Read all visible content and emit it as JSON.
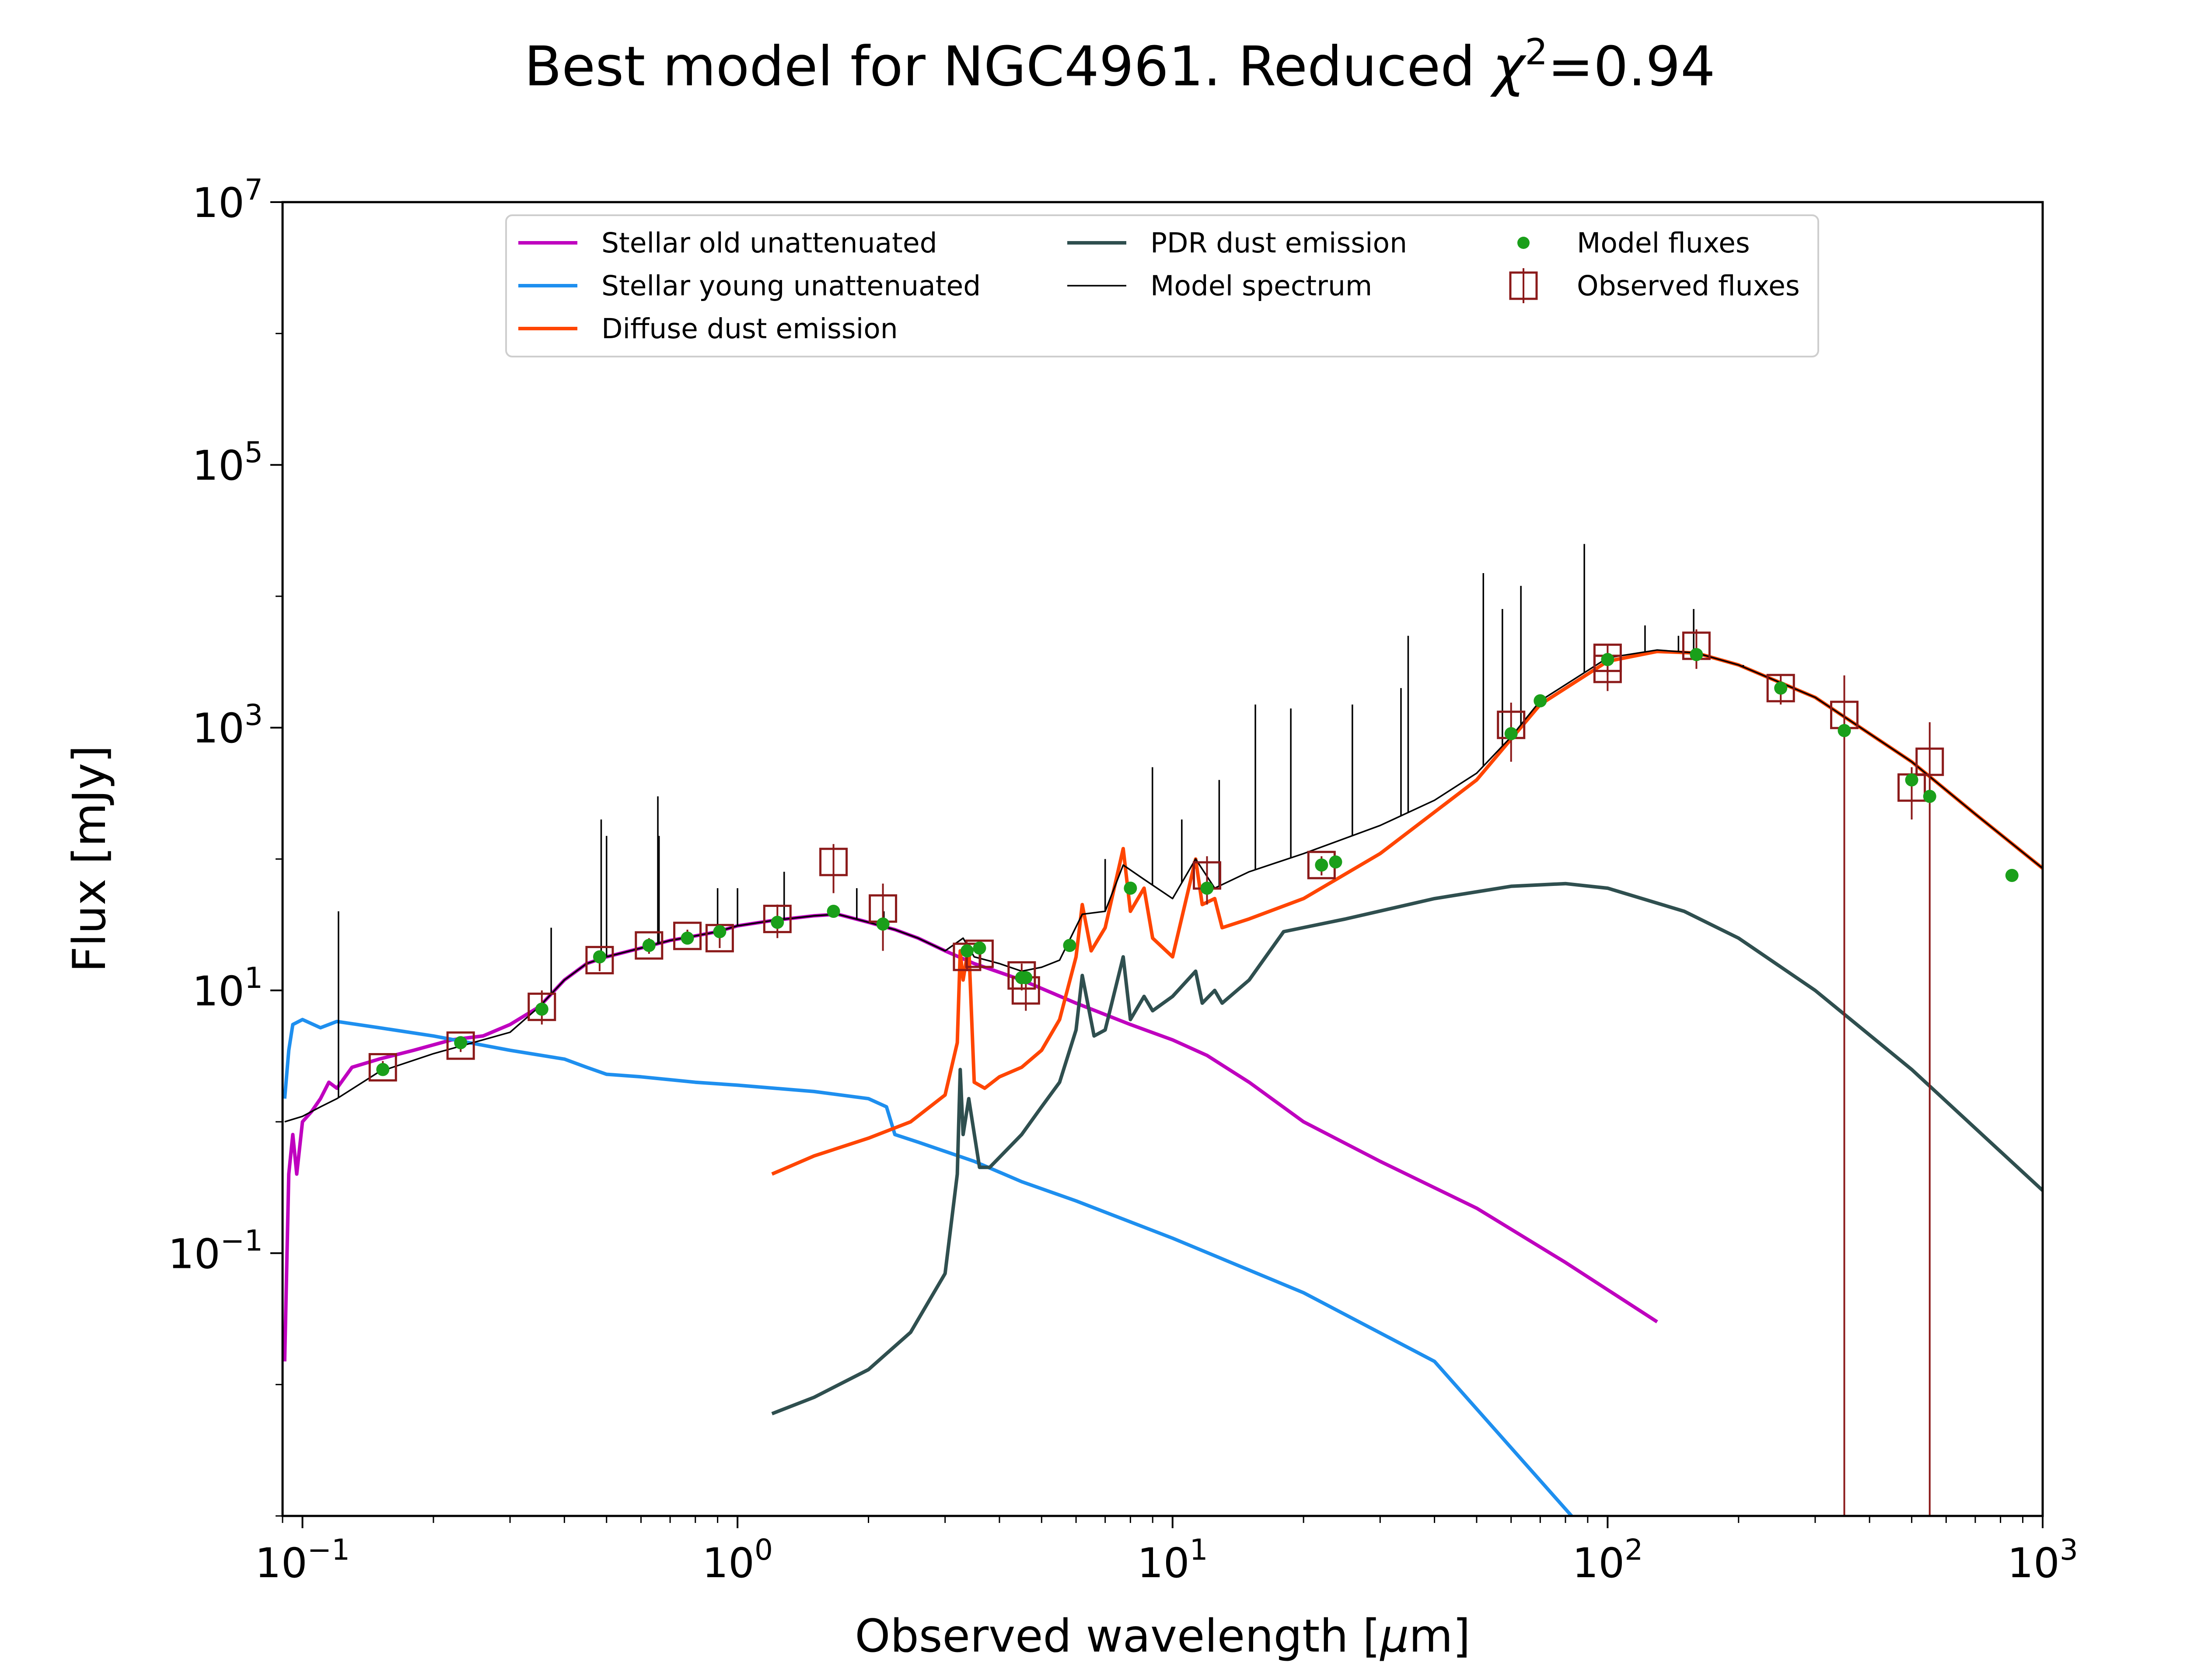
{
  "chart_data": {
    "type": "line",
    "title_main": "Best model for NGC4961. Reduced ",
    "title_chi": "χ",
    "title_chi_exp": "2",
    "title_value": "=0.94",
    "xlabel_pre": "Observed wavelength [",
    "xlabel_mu": "μ",
    "xlabel_post": "m]",
    "ylabel": "Flux [mJy]",
    "xscale": "log",
    "yscale": "log",
    "xlim": [
      0.09,
      1000
    ],
    "ylim": [
      0.001,
      10000000
    ],
    "grid": false,
    "legend_position": "top-center",
    "x_ticks": [
      {
        "value": 0.1,
        "base": "10",
        "exp": "−1"
      },
      {
        "value": 1,
        "base": "10",
        "exp": "0"
      },
      {
        "value": 10,
        "base": "10",
        "exp": "1"
      },
      {
        "value": 100,
        "base": "10",
        "exp": "2"
      },
      {
        "value": 1000,
        "base": "10",
        "exp": "3"
      }
    ],
    "y_ticks": [
      {
        "value": 0.1,
        "base": "10",
        "exp": "−1"
      },
      {
        "value": 10,
        "base": "10",
        "exp": "1"
      },
      {
        "value": 1000,
        "base": "10",
        "exp": "3"
      },
      {
        "value": 100000,
        "base": "10",
        "exp": "5"
      },
      {
        "value": 10000000,
        "base": "10",
        "exp": "7"
      }
    ],
    "series": [
      {
        "name": "Stellar old unattenuated",
        "color": "#bf00bf",
        "points": [
          [
            0.091,
            0.015
          ],
          [
            0.093,
            0.4
          ],
          [
            0.095,
            0.8
          ],
          [
            0.097,
            0.4
          ],
          [
            0.1,
            1.0
          ],
          [
            0.105,
            1.2
          ],
          [
            0.11,
            1.5
          ],
          [
            0.115,
            2.0
          ],
          [
            0.12,
            1.8
          ],
          [
            0.13,
            2.6
          ],
          [
            0.15,
            3.0
          ],
          [
            0.18,
            3.5
          ],
          [
            0.22,
            4.2
          ],
          [
            0.26,
            4.5
          ],
          [
            0.3,
            5.5
          ],
          [
            0.35,
            7.5
          ],
          [
            0.4,
            12
          ],
          [
            0.45,
            16
          ],
          [
            0.5,
            18
          ],
          [
            0.6,
            21
          ],
          [
            0.7,
            24
          ],
          [
            0.8,
            26
          ],
          [
            0.9,
            28
          ],
          [
            1.0,
            31
          ],
          [
            1.2,
            34
          ],
          [
            1.5,
            37
          ],
          [
            1.7,
            38
          ],
          [
            2.0,
            33
          ],
          [
            2.3,
            29
          ],
          [
            2.6,
            25
          ],
          [
            3.0,
            20
          ],
          [
            3.5,
            16
          ],
          [
            4.5,
            12
          ],
          [
            6,
            8
          ],
          [
            8,
            5.5
          ],
          [
            10,
            4.2
          ],
          [
            12,
            3.2
          ],
          [
            15,
            2.0
          ],
          [
            20,
            1.0
          ],
          [
            30,
            0.5
          ],
          [
            50,
            0.22
          ],
          [
            80,
            0.085
          ],
          [
            130,
            0.03
          ]
        ]
      },
      {
        "name": "Stellar young unattenuated",
        "color": "#1e8fef",
        "points": [
          [
            0.091,
            1.5
          ],
          [
            0.093,
            3.5
          ],
          [
            0.095,
            5.5
          ],
          [
            0.1,
            6.0
          ],
          [
            0.11,
            5.2
          ],
          [
            0.12,
            5.8
          ],
          [
            0.15,
            5.2
          ],
          [
            0.2,
            4.5
          ],
          [
            0.3,
            3.5
          ],
          [
            0.4,
            3.0
          ],
          [
            0.45,
            2.6
          ],
          [
            0.5,
            2.3
          ],
          [
            0.6,
            2.2
          ],
          [
            0.8,
            2.0
          ],
          [
            1.0,
            1.9
          ],
          [
            1.5,
            1.7
          ],
          [
            2.0,
            1.5
          ],
          [
            2.2,
            1.3
          ],
          [
            2.3,
            0.8
          ],
          [
            2.6,
            0.7
          ],
          [
            3.5,
            0.5
          ],
          [
            4.5,
            0.35
          ],
          [
            6,
            0.25
          ],
          [
            10,
            0.13
          ],
          [
            20,
            0.05
          ],
          [
            40,
            0.015
          ],
          [
            85,
            0.0009
          ]
        ]
      },
      {
        "name": "Diffuse dust emission",
        "color": "#ff4500",
        "points": [
          [
            1.2,
            0.4
          ],
          [
            1.5,
            0.55
          ],
          [
            2.0,
            0.75
          ],
          [
            2.5,
            1.0
          ],
          [
            3.0,
            1.6
          ],
          [
            3.2,
            4
          ],
          [
            3.25,
            20
          ],
          [
            3.3,
            12
          ],
          [
            3.4,
            22
          ],
          [
            3.5,
            2
          ],
          [
            3.7,
            1.8
          ],
          [
            4,
            2.2
          ],
          [
            4.5,
            2.6
          ],
          [
            5,
            3.5
          ],
          [
            5.5,
            6
          ],
          [
            6.0,
            18
          ],
          [
            6.2,
            45
          ],
          [
            6.5,
            20
          ],
          [
            7,
            30
          ],
          [
            7.7,
            120
          ],
          [
            8.0,
            40
          ],
          [
            8.6,
            60
          ],
          [
            9,
            25
          ],
          [
            10,
            18
          ],
          [
            11.3,
            100
          ],
          [
            11.7,
            45
          ],
          [
            12.5,
            50
          ],
          [
            13,
            30
          ],
          [
            15,
            35
          ],
          [
            20,
            50
          ],
          [
            30,
            110
          ],
          [
            50,
            400
          ],
          [
            70,
            1500
          ],
          [
            100,
            3200
          ],
          [
            130,
            3800
          ],
          [
            160,
            3700
          ],
          [
            200,
            3000
          ],
          [
            300,
            1700
          ],
          [
            500,
            550
          ],
          [
            700,
            220
          ],
          [
            1000,
            85
          ]
        ]
      },
      {
        "name": "PDR dust emission",
        "color": "#2f4f4f",
        "points": [
          [
            1.2,
            0.006
          ],
          [
            1.5,
            0.008
          ],
          [
            2.0,
            0.013
          ],
          [
            2.5,
            0.025
          ],
          [
            3.0,
            0.07
          ],
          [
            3.2,
            0.4
          ],
          [
            3.25,
            2.5
          ],
          [
            3.3,
            0.8
          ],
          [
            3.4,
            1.5
          ],
          [
            3.6,
            0.45
          ],
          [
            3.8,
            0.45
          ],
          [
            4.5,
            0.8
          ],
          [
            5,
            1.3
          ],
          [
            5.5,
            2.0
          ],
          [
            6.0,
            5
          ],
          [
            6.2,
            13
          ],
          [
            6.6,
            4.5
          ],
          [
            7,
            5
          ],
          [
            7.7,
            18
          ],
          [
            8.0,
            6
          ],
          [
            8.6,
            9
          ],
          [
            9,
            7
          ],
          [
            10,
            9
          ],
          [
            11.3,
            14
          ],
          [
            11.7,
            8
          ],
          [
            12.5,
            10
          ],
          [
            13,
            8
          ],
          [
            15,
            12
          ],
          [
            18,
            28
          ],
          [
            25,
            35
          ],
          [
            40,
            50
          ],
          [
            60,
            62
          ],
          [
            80,
            65
          ],
          [
            100,
            60
          ],
          [
            150,
            40
          ],
          [
            200,
            25
          ],
          [
            300,
            10
          ],
          [
            500,
            2.5
          ],
          [
            1000,
            0.3
          ]
        ]
      },
      {
        "name": "Model spectrum",
        "color": "#000000",
        "points": [
          [
            0.091,
            1.0
          ],
          [
            0.1,
            1.1
          ],
          [
            0.11,
            1.3
          ],
          [
            0.12,
            1.5
          ],
          [
            0.15,
            2.4
          ],
          [
            0.2,
            3.3
          ],
          [
            0.3,
            4.8
          ],
          [
            0.35,
            7.5
          ],
          [
            0.4,
            12
          ],
          [
            0.45,
            16
          ],
          [
            0.5,
            18
          ],
          [
            0.6,
            21
          ],
          [
            0.7,
            24
          ],
          [
            0.8,
            26
          ],
          [
            0.9,
            28
          ],
          [
            1.0,
            31
          ],
          [
            1.2,
            34
          ],
          [
            1.5,
            37
          ],
          [
            1.7,
            38
          ],
          [
            2.0,
            33
          ],
          [
            2.3,
            29
          ],
          [
            2.6,
            25
          ],
          [
            3.0,
            20
          ],
          [
            3.3,
            25
          ],
          [
            3.5,
            18
          ],
          [
            4.0,
            16
          ],
          [
            4.5,
            14
          ],
          [
            5.0,
            15
          ],
          [
            5.5,
            17
          ],
          [
            6.2,
            38
          ],
          [
            7,
            40
          ],
          [
            7.7,
            90
          ],
          [
            8.6,
            70
          ],
          [
            10,
            50
          ],
          [
            11.3,
            100
          ],
          [
            12.5,
            60
          ],
          [
            15,
            80
          ],
          [
            20,
            110
          ],
          [
            30,
            180
          ],
          [
            40,
            280
          ],
          [
            50,
            450
          ],
          [
            60,
            850
          ],
          [
            70,
            1600
          ],
          [
            100,
            3400
          ],
          [
            130,
            3900
          ],
          [
            160,
            3700
          ],
          [
            200,
            3000
          ],
          [
            300,
            1700
          ],
          [
            500,
            550
          ],
          [
            700,
            220
          ],
          [
            1000,
            85
          ]
        ],
        "emission_lines": [
          [
            0.121,
            40
          ],
          [
            0.373,
            30
          ],
          [
            0.486,
            200
          ],
          [
            0.5,
            150
          ],
          [
            0.656,
            300
          ],
          [
            0.66,
            150
          ],
          [
            0.9,
            60
          ],
          [
            1.0,
            60
          ],
          [
            1.28,
            80
          ],
          [
            1.88,
            60
          ],
          [
            2.17,
            40
          ],
          [
            7.0,
            100
          ],
          [
            8.99,
            500
          ],
          [
            10.5,
            200
          ],
          [
            12.8,
            400
          ],
          [
            15.5,
            1500
          ],
          [
            18.7,
            1400
          ],
          [
            25.9,
            1500
          ],
          [
            33.5,
            2000
          ],
          [
            34.8,
            5000
          ],
          [
            51.8,
            15000
          ],
          [
            57.3,
            8000
          ],
          [
            63.2,
            12000
          ],
          [
            88.4,
            25000
          ],
          [
            121.9,
            6000
          ],
          [
            145.5,
            5000
          ],
          [
            157.7,
            8000
          ],
          [
            205,
            3000
          ]
        ]
      }
    ],
    "model_fluxes": {
      "name": "Model fluxes",
      "color": "#1a9f1a",
      "points": [
        [
          0.153,
          2.5
        ],
        [
          0.231,
          4.0
        ],
        [
          0.355,
          7.2
        ],
        [
          0.482,
          18
        ],
        [
          0.626,
          22
        ],
        [
          0.767,
          25
        ],
        [
          0.91,
          28
        ],
        [
          1.235,
          33
        ],
        [
          1.662,
          40
        ],
        [
          2.159,
          32
        ],
        [
          3.37,
          20
        ],
        [
          3.6,
          21
        ],
        [
          4.5,
          12.5
        ],
        [
          4.6,
          12.5
        ],
        [
          5.8,
          22
        ],
        [
          8.0,
          60
        ],
        [
          12,
          60
        ],
        [
          22,
          90
        ],
        [
          23.7,
          95
        ],
        [
          60,
          900
        ],
        [
          70,
          1600
        ],
        [
          100,
          3300
        ],
        [
          160,
          3600
        ],
        [
          250,
          2000
        ],
        [
          350,
          950
        ],
        [
          500,
          400
        ],
        [
          550,
          300
        ],
        [
          850,
          75
        ]
      ]
    },
    "observed_fluxes": {
      "name": "Observed fluxes",
      "color": "#8b1a1a",
      "points": [
        {
          "x": 0.153,
          "y": 2.6,
          "ylo": 2.3,
          "yhi": 2.9
        },
        {
          "x": 0.231,
          "y": 3.8,
          "ylo": 3.4,
          "yhi": 4.2
        },
        {
          "x": 0.355,
          "y": 7.5,
          "ylo": 5.5,
          "yhi": 10
        },
        {
          "x": 0.482,
          "y": 17,
          "ylo": 14,
          "yhi": 20
        },
        {
          "x": 0.626,
          "y": 22,
          "ylo": 19,
          "yhi": 25
        },
        {
          "x": 0.767,
          "y": 26,
          "ylo": 23,
          "yhi": 29
        },
        {
          "x": 0.91,
          "y": 25,
          "ylo": 21,
          "yhi": 29
        },
        {
          "x": 1.235,
          "y": 35,
          "ylo": 25,
          "yhi": 45
        },
        {
          "x": 1.662,
          "y": 95,
          "ylo": 55,
          "yhi": 130
        },
        {
          "x": 2.159,
          "y": 42,
          "ylo": 20,
          "yhi": 65
        },
        {
          "x": 3.37,
          "y": 18,
          "ylo": 14,
          "yhi": 22
        },
        {
          "x": 3.6,
          "y": 19,
          "ylo": 15,
          "yhi": 23
        },
        {
          "x": 4.5,
          "y": 13,
          "ylo": 10,
          "yhi": 16
        },
        {
          "x": 4.6,
          "y": 10,
          "ylo": 7,
          "yhi": 13
        },
        {
          "x": 12,
          "y": 75,
          "ylo": 45,
          "yhi": 105
        },
        {
          "x": 22,
          "y": 90,
          "ylo": 75,
          "yhi": 105
        },
        {
          "x": 60,
          "y": 1050,
          "ylo": 550,
          "yhi": 1550
        },
        {
          "x": 100,
          "y": 2800,
          "ylo": 1900,
          "yhi": 3700
        },
        {
          "x": 100,
          "y": 3400,
          "ylo": 2500,
          "yhi": 4300
        },
        {
          "x": 160,
          "y": 4200,
          "ylo": 2800,
          "yhi": 5600
        },
        {
          "x": 250,
          "y": 2000,
          "ylo": 1500,
          "yhi": 2500
        },
        {
          "x": 350,
          "y": 1250,
          "ylo": 0.001,
          "yhi": 2500
        },
        {
          "x": 500,
          "y": 350,
          "ylo": 200,
          "yhi": 500
        },
        {
          "x": 550,
          "y": 550,
          "ylo": 0.001,
          "yhi": 1100
        }
      ]
    }
  }
}
